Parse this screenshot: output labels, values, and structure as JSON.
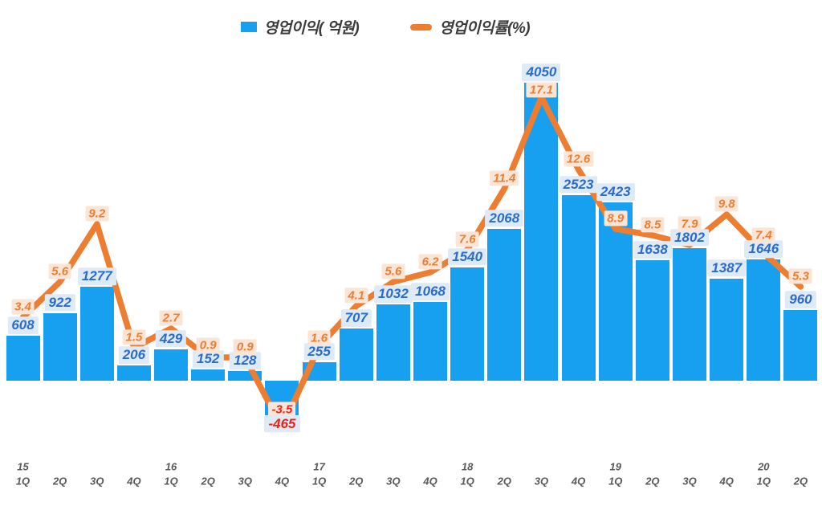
{
  "legend": {
    "bar_label": "영업이익( 억원)",
    "line_label": "영업이익률(%)"
  },
  "chart_data": {
    "type": "bar",
    "subtype": "bar-line-combo",
    "title": "",
    "categories": [
      "15 1Q",
      "15 2Q",
      "15 3Q",
      "15 4Q",
      "16 1Q",
      "16 2Q",
      "16 3Q",
      "16 4Q",
      "17 1Q",
      "17 2Q",
      "17 3Q",
      "17 4Q",
      "18 1Q",
      "18 2Q",
      "18 3Q",
      "18 4Q",
      "19 1Q",
      "19 2Q",
      "19 3Q",
      "19 4Q",
      "20 1Q",
      "20 2Q"
    ],
    "x_tick_quarters": [
      "1Q",
      "2Q",
      "3Q",
      "4Q",
      "1Q",
      "2Q",
      "3Q",
      "4Q",
      "1Q",
      "2Q",
      "3Q",
      "4Q",
      "1Q",
      "2Q",
      "3Q",
      "4Q",
      "1Q",
      "2Q",
      "3Q",
      "4Q",
      "1Q",
      "2Q"
    ],
    "x_year_marks": [
      {
        "index": 0,
        "label": "15"
      },
      {
        "index": 4,
        "label": "16"
      },
      {
        "index": 8,
        "label": "17"
      },
      {
        "index": 12,
        "label": "18"
      },
      {
        "index": 16,
        "label": "19"
      },
      {
        "index": 20,
        "label": "20"
      }
    ],
    "series": [
      {
        "name": "영업이익( 억원)",
        "type": "bar",
        "values": [
          608,
          922,
          1277,
          206,
          429,
          152,
          128,
          -465,
          255,
          707,
          1032,
          1068,
          1540,
          2068,
          4050,
          2523,
          2423,
          1638,
          1802,
          1387,
          1646,
          960
        ]
      },
      {
        "name": "영업이익률(%)",
        "type": "line",
        "values": [
          3.4,
          5.6,
          9.2,
          1.5,
          2.7,
          0.9,
          0.9,
          -3.5,
          1.6,
          4.1,
          5.6,
          6.2,
          7.6,
          11.4,
          17.1,
          12.6,
          8.9,
          8.5,
          7.9,
          9.8,
          7.4,
          5.3
        ]
      }
    ],
    "legend_position": "top-center",
    "grid": false,
    "axes_visible": false,
    "data_labels": true,
    "colors": {
      "bar": "#18A0F0",
      "line": "#ED7D31",
      "bar_label_text": "#2A6BCE",
      "bar_label_bg": "#DEEAF5",
      "pct_label_text": "#ED7D31",
      "pct_label_bg": "#FBE5D6",
      "negative_text": "#EE2117",
      "axis_text": "#595959"
    }
  }
}
